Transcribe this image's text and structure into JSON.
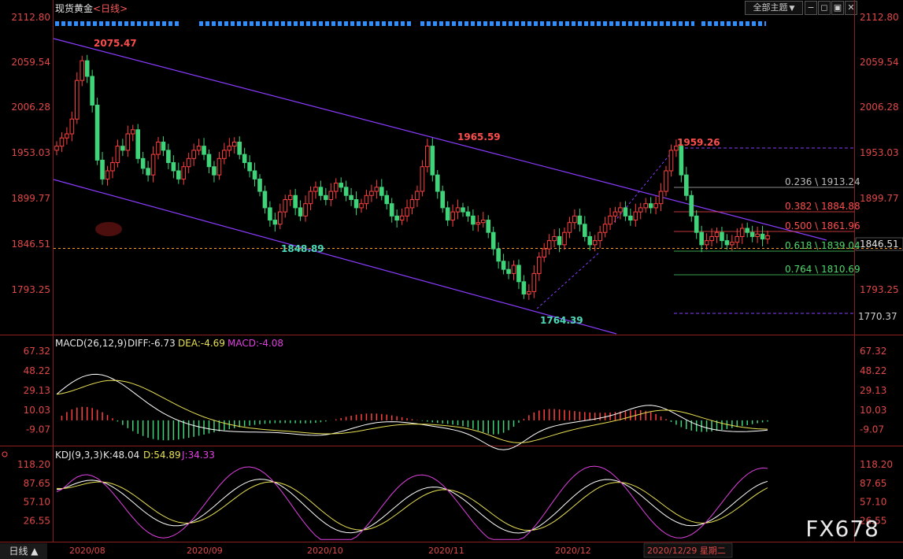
{
  "header": {
    "title": "现货黄金",
    "period": "<日线>",
    "theme_button": "全部主题",
    "theme_arrow": "▼"
  },
  "colors": {
    "background": "#000000",
    "up": "#ff4040",
    "down": "#3fd47a",
    "channel": "#8a3cff",
    "axis": "#e04848"
  },
  "main": {
    "price_labels": [
      "2112.80",
      "2059.54",
      "2006.28",
      "1953.03",
      "1899.77",
      "1846.51",
      "1793.25"
    ],
    "extra_label": "1770.37",
    "annotations": [
      "2075.47",
      "1848.89",
      "1965.59",
      "1764.39",
      "1959.26"
    ],
    "fib_levels": [
      {
        "label": "0.236 \\ 1913.24",
        "value": 1913.24,
        "color": "#bbbbbb"
      },
      {
        "label": "0.382 \\ 1884.88",
        "value": 1884.88,
        "color": "#ff4d4d"
      },
      {
        "label": "0.500 \\ 1861.96",
        "value": 1861.96,
        "color": "#ff4d4d"
      },
      {
        "label": "0.618 \\ 1839.04",
        "value": 1839.04,
        "color": "#4dd96b"
      },
      {
        "label": "0.764 \\ 1810.69",
        "value": 1810.69,
        "color": "#4dd96b"
      }
    ],
    "current_price_value": 1846.51
  },
  "macd": {
    "title": "MACD(26,12,9)",
    "diff": "DIFF:-6.73",
    "dea": "DEA:-4.69",
    "macd": "MACD:-4.08",
    "axis": [
      "67.32",
      "48.22",
      "29.13",
      "10.03",
      "-9.07"
    ]
  },
  "kdj": {
    "title": "KDJ(9,3,3)",
    "k": "K:48.04",
    "d": "D:54.89",
    "j": "J:34.33",
    "axis": [
      "118.20",
      "87.65",
      "57.10",
      "26.55"
    ]
  },
  "xaxis": [
    "2020/08",
    "2020/09",
    "2020/10",
    "2020/11",
    "2020/12",
    "2020/12/29 星期二"
  ],
  "footer": {
    "period_tab": "日线 ▲"
  },
  "watermark": "FX678",
  "chart_data": {
    "type": "candlestick",
    "title": "现货黄金",
    "ylim": [
      1740,
      2112.8
    ],
    "x": [
      "2020/08",
      "2020/09",
      "2020/10",
      "2020/11",
      "2020/12",
      "2020/12/29"
    ],
    "highlights": {
      "high_aug": 2075.47,
      "low_sep": 1848.89,
      "high_nov": 1965.59,
      "low_nov": 1764.39,
      "high_jan": 1959.26,
      "low_proj": 1770.37
    },
    "fibonacci": [
      {
        "ratio": 0.236,
        "price": 1913.24
      },
      {
        "ratio": 0.382,
        "price": 1884.88
      },
      {
        "ratio": 0.5,
        "price": 1861.96
      },
      {
        "ratio": 0.618,
        "price": 1839.04
      },
      {
        "ratio": 0.764,
        "price": 1810.69
      }
    ],
    "indicators": {
      "MACD": {
        "DIFF": -6.73,
        "DEA": -4.69,
        "MACD": -4.08
      },
      "KDJ": {
        "K": 48.04,
        "D": 54.89,
        "J": 34.33
      }
    }
  }
}
